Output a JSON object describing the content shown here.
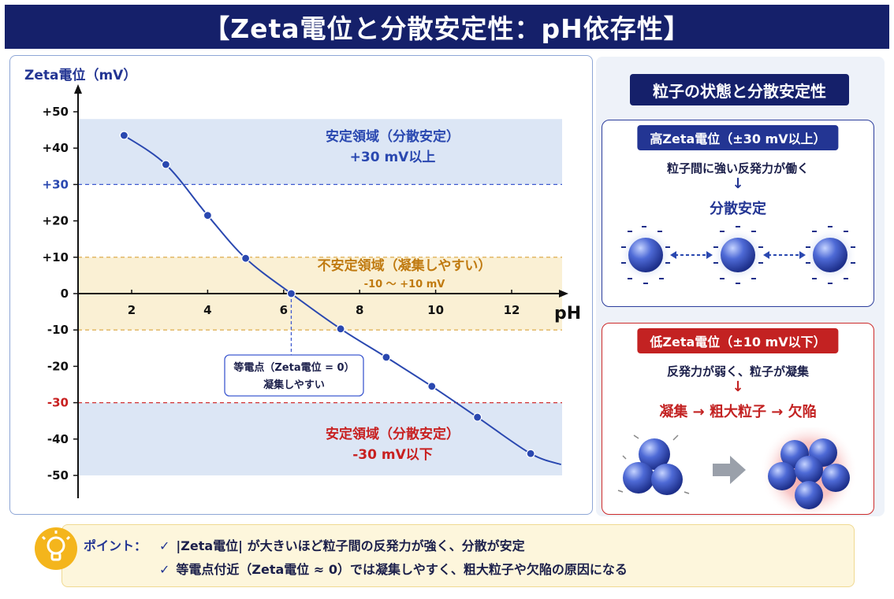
{
  "page": {
    "title": "【Zeta電位と分散安定性：pH依存性】"
  },
  "chart_data": {
    "type": "line",
    "ylabel": "Zeta電位（mV）",
    "xlabel": "pH",
    "xlim": [
      0.6,
      13.3
    ],
    "ylim": [
      -54,
      56
    ],
    "x_ticks": [
      2,
      4,
      6,
      8,
      10,
      12
    ],
    "x_tick_labels": [
      "2",
      "4",
      "6",
      "8",
      "10",
      "12"
    ],
    "y_ticks": [
      50,
      40,
      30,
      20,
      10,
      0,
      -10,
      -20,
      -30,
      -40,
      -50
    ],
    "y_tick_labels": [
      "+50",
      "+40",
      "+30",
      "+20",
      "+10",
      "0",
      "-10",
      "-20",
      "-30",
      "-40",
      "-50"
    ],
    "points": [
      {
        "x": 1.8,
        "y": 43.5
      },
      {
        "x": 2.9,
        "y": 35.5
      },
      {
        "x": 4.0,
        "y": 21.5
      },
      {
        "x": 5.0,
        "y": 9.7
      },
      {
        "x": 6.2,
        "y": 0
      },
      {
        "x": 7.5,
        "y": -9.7
      },
      {
        "x": 8.7,
        "y": -17.5
      },
      {
        "x": 9.9,
        "y": -25.5
      },
      {
        "x": 11.1,
        "y": -34
      },
      {
        "x": 12.5,
        "y": -44
      }
    ],
    "curve_end": {
      "x": 13.3,
      "y": -47
    },
    "regions": [
      {
        "from": 30,
        "to": 48,
        "color": "#dce6f5",
        "label_lines": [
          "安定領域（分散安定）",
          "+30 mV以上"
        ],
        "text_color": "#2a48b0"
      },
      {
        "from": -10,
        "to": 10,
        "color": "#faf0d4",
        "label_lines": [
          "不安定領域（凝集しやすい）",
          "-10 〜 +10 mV"
        ],
        "text_color": "#c07a10"
      },
      {
        "from": -50,
        "to": -30,
        "color": "#dce6f5",
        "label_lines": [
          "安定領域（分散安定）",
          "-30 mV以下"
        ],
        "text_color": "#c82020"
      }
    ],
    "threshold_lines": [
      {
        "y": 30,
        "color": "#3f5ad0"
      },
      {
        "y": 10,
        "color": "#d9a23a"
      },
      {
        "y": -10,
        "color": "#d9a23a"
      },
      {
        "y": -30,
        "color": "#d03030"
      }
    ],
    "annotation": {
      "lines": [
        "等電点（Zeta電位 = 0）",
        "凝集しやすい"
      ],
      "x": 6.2,
      "y": 0
    }
  },
  "side_panel": {
    "header": "粒子の状態と分散安定性",
    "high": {
      "title": "高Zeta電位（±30 mV以上）",
      "description": "粒子間に強い反発力が働く",
      "result": "分散安定"
    },
    "low": {
      "title": "低Zeta電位（±10 mV以下）",
      "description": "反発力が弱く、粒子が凝集",
      "result": "凝集 → 粗大粒子 → 欠陥"
    }
  },
  "point_box": {
    "label": "ポイント：",
    "check": "✓",
    "lines": [
      "|Zeta電位| が大きいほど粒子間の反発力が強く、分散が安定",
      "等電点付近（Zeta電位 ≈ 0）では凝集しやすく、粗大粒子や欠陥の原因になる"
    ]
  },
  "colors": {
    "navy": "#15206a",
    "blue": "#233593",
    "red": "#c32222",
    "curve": "#2a48b0",
    "sphere": "#3a58c8"
  },
  "icons": {
    "bulb": "lightbulb-icon"
  }
}
